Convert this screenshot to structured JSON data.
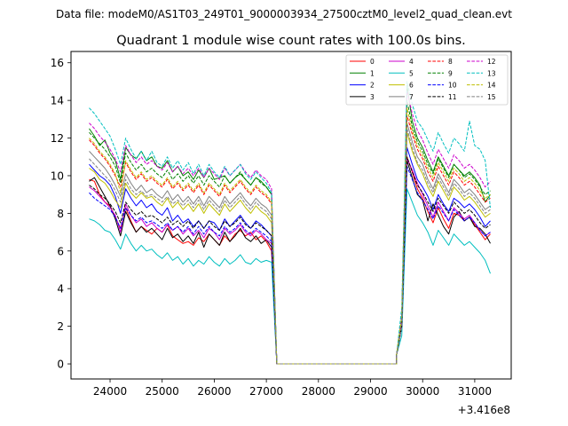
{
  "chart_data": {
    "type": "line",
    "suptitle": "Data file: modeM0/AS1T03_249T01_9000003934_27500cztM0_level2_quad_clean.evt",
    "title": "Quadrant 1 module wise count rates with 100.0s bins.",
    "xlabel": "",
    "ylabel": "",
    "x_offset_label": "+3.416e8",
    "xlim": [
      23250,
      31700
    ],
    "ylim": [
      -0.8,
      16.6
    ],
    "xticks": [
      24000,
      25000,
      26000,
      27000,
      28000,
      29000,
      30000,
      31000
    ],
    "xtick_labels": [
      "24000",
      "25000",
      "26000",
      "27000",
      "28000",
      "29000",
      "30000",
      "31000"
    ],
    "yticks": [
      0,
      2,
      4,
      6,
      8,
      10,
      12,
      14,
      16
    ],
    "ytick_labels": [
      "0",
      "2",
      "4",
      "6",
      "8",
      "10",
      "12",
      "14",
      "16"
    ],
    "segments": {
      "seg1": {
        "x_start": 23600,
        "x_end": 27100,
        "step": 100
      },
      "drop_x": [
        27100,
        27200
      ],
      "gap": {
        "x_start": 27200,
        "x_end": 29500
      },
      "seg2": {
        "x_start": 29500,
        "x_end": 31300,
        "step": 100
      }
    },
    "series": [
      {
        "name": "0",
        "color": "#ff0000",
        "dashed": false,
        "seg1": [
          9.8,
          9.7,
          9.0,
          8.6,
          8.4,
          7.8,
          7.2,
          8.3,
          7.6,
          7.0,
          7.3,
          7.1,
          6.9,
          7.2,
          7.0,
          7.4,
          6.8,
          6.6,
          6.4,
          6.5,
          6.3,
          6.7,
          6.5,
          6.9,
          6.6,
          6.3,
          6.8,
          6.5,
          6.9,
          7.1,
          6.8,
          7.0,
          6.6,
          6.8,
          6.5,
          6.0
        ],
        "seg2": [
          0.5,
          2.0,
          11.0,
          10.2,
          9.3,
          8.8,
          8.1,
          7.5,
          8.3,
          7.7,
          7.2,
          8.0,
          7.9,
          7.6,
          7.8,
          7.4,
          7.0,
          6.6,
          6.9
        ]
      },
      {
        "name": "1",
        "color": "#008000",
        "dashed": false,
        "seg1": [
          12.5,
          12.1,
          11.6,
          11.9,
          11.2,
          10.8,
          9.8,
          11.5,
          11.1,
          10.9,
          11.3,
          10.8,
          11.0,
          10.5,
          10.4,
          10.8,
          10.2,
          10.5,
          10.0,
          10.2,
          9.8,
          10.3,
          9.9,
          10.4,
          9.8,
          9.9,
          10.0,
          9.6,
          9.9,
          10.1,
          9.8,
          9.5,
          9.9,
          9.7,
          9.4,
          9.0
        ],
        "seg2": [
          0.5,
          2.5,
          14.8,
          12.9,
          12.0,
          11.5,
          10.8,
          10.2,
          11.0,
          10.5,
          10.0,
          10.6,
          10.3,
          10.0,
          10.2,
          9.9,
          9.5,
          8.6,
          9.0
        ]
      },
      {
        "name": "2",
        "color": "#0000ff",
        "dashed": false,
        "seg1": [
          10.6,
          10.3,
          10.0,
          9.8,
          9.5,
          8.9,
          8.0,
          9.3,
          8.8,
          8.4,
          8.7,
          8.3,
          8.5,
          8.1,
          7.9,
          8.3,
          7.6,
          7.9,
          7.5,
          7.7,
          7.3,
          7.6,
          7.2,
          7.6,
          7.5,
          7.1,
          7.7,
          7.3,
          7.6,
          7.9,
          7.5,
          7.2,
          7.6,
          7.4,
          7.1,
          6.8
        ],
        "seg2": [
          0.5,
          2.0,
          11.5,
          10.6,
          9.8,
          9.4,
          8.9,
          8.2,
          9.0,
          8.5,
          8.1,
          8.8,
          8.6,
          8.3,
          8.5,
          8.2,
          7.8,
          7.3,
          7.6
        ]
      },
      {
        "name": "3",
        "color": "#000000",
        "dashed": false,
        "seg1": [
          9.7,
          9.9,
          9.4,
          8.9,
          8.4,
          7.7,
          6.8,
          8.1,
          7.5,
          7.0,
          7.3,
          7.0,
          7.2,
          6.9,
          6.6,
          7.2,
          6.7,
          6.9,
          6.5,
          6.8,
          6.4,
          7.0,
          6.2,
          6.9,
          6.6,
          6.3,
          7.0,
          6.5,
          6.8,
          7.2,
          6.7,
          6.5,
          6.8,
          6.4,
          6.6,
          6.2
        ],
        "seg2": [
          0.5,
          2.0,
          10.8,
          9.9,
          9.0,
          8.7,
          7.6,
          8.5,
          7.9,
          7.3,
          6.9,
          7.8,
          8.1,
          7.6,
          7.8,
          7.3,
          7.2,
          6.9,
          6.4
        ]
      },
      {
        "name": "4",
        "color": "#cc00cc",
        "dashed": false,
        "seg1": [
          9.4,
          9.2,
          8.9,
          8.6,
          8.3,
          7.9,
          7.0,
          8.5,
          7.9,
          7.5,
          7.7,
          7.3,
          7.5,
          7.2,
          7.0,
          7.4,
          7.1,
          7.3,
          6.9,
          7.2,
          6.8,
          7.1,
          6.7,
          7.2,
          7.0,
          6.6,
          7.2,
          6.9,
          7.1,
          7.4,
          7.0,
          6.8,
          7.1,
          6.9,
          6.6,
          6.4
        ],
        "seg2": [
          0.5,
          2.0,
          10.9,
          10.3,
          9.6,
          9.0,
          8.4,
          7.8,
          8.6,
          8.1,
          7.6,
          8.3,
          8.0,
          7.7,
          7.9,
          7.5,
          7.1,
          6.8,
          7.0
        ]
      },
      {
        "name": "5",
        "color": "#00bfbf",
        "dashed": false,
        "seg1": [
          7.7,
          7.6,
          7.4,
          7.1,
          7.0,
          6.6,
          6.1,
          6.9,
          6.4,
          6.0,
          6.3,
          6.0,
          6.1,
          5.8,
          5.6,
          5.9,
          5.5,
          5.7,
          5.3,
          5.6,
          5.2,
          5.5,
          5.3,
          5.7,
          5.4,
          5.2,
          5.6,
          5.3,
          5.5,
          5.8,
          5.4,
          5.3,
          5.6,
          5.4,
          5.5,
          5.4
        ],
        "seg2": [
          0.5,
          1.5,
          9.3,
          8.6,
          7.9,
          7.5,
          7.0,
          6.3,
          7.1,
          6.7,
          6.3,
          6.9,
          6.6,
          6.3,
          6.5,
          6.2,
          5.9,
          5.5,
          4.8
        ]
      },
      {
        "name": "6",
        "color": "#bfbf00",
        "dashed": false,
        "seg1": [
          10.4,
          10.2,
          9.8,
          9.6,
          9.2,
          8.7,
          8.3,
          9.6,
          9.1,
          8.8,
          9.1,
          8.8,
          8.9,
          8.6,
          8.4,
          8.8,
          8.3,
          8.6,
          8.2,
          8.5,
          8.1,
          8.5,
          8.0,
          8.5,
          8.2,
          7.9,
          8.5,
          8.1,
          8.4,
          8.7,
          8.3,
          8.0,
          8.4,
          8.1,
          7.9,
          7.5
        ],
        "seg2": [
          0.5,
          2.0,
          12.3,
          11.3,
          10.6,
          10.1,
          9.4,
          8.9,
          9.7,
          9.2,
          8.7,
          9.4,
          9.1,
          8.7,
          8.9,
          8.6,
          8.2,
          7.8,
          8.0
        ]
      },
      {
        "name": "7",
        "color": "#808080",
        "dashed": false,
        "seg1": [
          11.3,
          11.0,
          10.7,
          10.4,
          10.0,
          9.5,
          8.9,
          10.1,
          9.6,
          9.2,
          9.5,
          9.1,
          9.3,
          9.0,
          8.8,
          9.2,
          8.7,
          9.0,
          8.6,
          8.9,
          8.5,
          8.9,
          8.4,
          8.9,
          8.6,
          8.3,
          8.9,
          8.5,
          8.8,
          9.1,
          8.7,
          8.4,
          8.8,
          8.5,
          8.3,
          7.9
        ],
        "seg2": [
          0.5,
          2.0,
          12.8,
          11.8,
          11.0,
          10.6,
          9.8,
          9.3,
          10.1,
          9.6,
          9.1,
          9.8,
          9.5,
          9.1,
          9.3,
          9.0,
          8.6,
          8.2,
          8.4
        ]
      },
      {
        "name": "8",
        "color": "#ff0000",
        "dashed": true,
        "seg1": [
          11.9,
          11.6,
          11.2,
          10.9,
          10.5,
          10.0,
          9.4,
          10.7,
          10.2,
          9.8,
          10.1,
          9.7,
          9.9,
          9.6,
          9.4,
          9.8,
          9.3,
          9.6,
          9.2,
          9.5,
          9.1,
          9.5,
          9.0,
          9.5,
          9.2,
          8.9,
          9.5,
          9.1,
          9.4,
          9.7,
          9.3,
          9.0,
          9.4,
          9.1,
          8.9,
          8.5
        ],
        "seg2": [
          0.5,
          2.5,
          13.2,
          12.2,
          11.4,
          10.9,
          10.2,
          9.7,
          10.5,
          10.0,
          9.5,
          10.2,
          9.9,
          9.5,
          9.7,
          9.4,
          9.0,
          8.6,
          8.8
        ]
      },
      {
        "name": "9",
        "color": "#008000",
        "dashed": true,
        "seg1": [
          12.3,
          12.0,
          11.7,
          11.4,
          11.0,
          10.5,
          9.6,
          11.2,
          10.7,
          10.3,
          10.6,
          10.2,
          10.4,
          10.1,
          9.9,
          10.3,
          9.8,
          10.1,
          9.7,
          10.0,
          9.6,
          10.0,
          9.5,
          10.0,
          9.7,
          9.4,
          10.0,
          9.6,
          9.9,
          10.2,
          9.8,
          9.5,
          9.9,
          9.6,
          9.4,
          9.0
        ],
        "seg2": [
          0.5,
          2.5,
          14.0,
          12.6,
          11.8,
          11.3,
          10.6,
          10.1,
          10.9,
          10.4,
          9.9,
          10.6,
          10.3,
          9.9,
          10.1,
          9.8,
          9.4,
          9.0,
          9.2
        ]
      },
      {
        "name": "10",
        "color": "#0000ff",
        "dashed": true,
        "seg1": [
          9.1,
          8.8,
          8.6,
          8.4,
          8.2,
          7.8,
          7.2,
          8.3,
          7.9,
          7.6,
          7.8,
          7.5,
          7.6,
          7.4,
          7.2,
          7.5,
          7.1,
          7.3,
          7.0,
          7.3,
          6.9,
          7.3,
          6.9,
          7.3,
          7.0,
          6.8,
          7.3,
          7.0,
          7.2,
          7.5,
          7.1,
          6.9,
          7.2,
          7.0,
          6.8,
          6.5
        ],
        "seg2": [
          0.5,
          2.0,
          10.5,
          9.8,
          9.1,
          8.7,
          8.2,
          7.7,
          8.4,
          8.0,
          7.6,
          8.2,
          7.9,
          7.6,
          7.8,
          7.5,
          7.1,
          6.8,
          7.0
        ]
      },
      {
        "name": "11",
        "color": "#000000",
        "dashed": true,
        "seg1": [
          9.5,
          9.3,
          9.0,
          8.8,
          8.5,
          8.1,
          7.5,
          8.6,
          8.2,
          7.9,
          8.1,
          7.8,
          7.9,
          7.7,
          7.5,
          7.8,
          7.4,
          7.6,
          7.3,
          7.6,
          7.2,
          7.6,
          7.2,
          7.6,
          7.3,
          7.1,
          7.6,
          7.3,
          7.5,
          7.8,
          7.4,
          7.2,
          7.5,
          7.3,
          7.1,
          6.8
        ],
        "seg2": [
          0.5,
          2.0,
          11.0,
          10.2,
          9.5,
          9.1,
          8.6,
          8.1,
          8.8,
          8.4,
          8.0,
          8.6,
          8.3,
          8.0,
          8.2,
          7.9,
          7.5,
          7.2,
          7.4
        ]
      },
      {
        "name": "12",
        "color": "#cc00cc",
        "dashed": true,
        "seg1": [
          12.8,
          12.5,
          12.1,
          11.8,
          11.4,
          10.9,
          10.2,
          11.6,
          11.1,
          10.7,
          11.0,
          10.6,
          10.8,
          10.5,
          10.3,
          10.7,
          10.2,
          10.5,
          10.1,
          10.4,
          10.0,
          10.4,
          9.9,
          10.4,
          10.1,
          9.8,
          10.4,
          10.0,
          10.3,
          10.6,
          10.2,
          9.9,
          10.3,
          10.0,
          9.8,
          9.3
        ],
        "seg2": [
          0.5,
          2.5,
          14.5,
          13.3,
          12.4,
          11.9,
          11.2,
          10.6,
          11.4,
          10.9,
          10.4,
          11.1,
          10.8,
          10.4,
          10.6,
          10.3,
          9.9,
          9.4,
          9.7
        ]
      },
      {
        "name": "13",
        "color": "#00bfbf",
        "dashed": true,
        "seg1": [
          13.6,
          13.3,
          12.9,
          12.5,
          12.1,
          11.4,
          10.6,
          12.0,
          11.4,
          10.9,
          11.3,
          10.8,
          11.3,
          10.7,
          10.5,
          11.0,
          10.4,
          10.8,
          10.3,
          10.7,
          10.1,
          10.6,
          10.0,
          10.6,
          10.2,
          9.9,
          10.5,
          10.0,
          10.3,
          10.6,
          10.1,
          9.8,
          10.2,
          9.9,
          9.6,
          9.1
        ],
        "seg2": [
          0.5,
          3.0,
          15.0,
          13.8,
          12.9,
          12.5,
          11.9,
          11.3,
          12.3,
          11.7,
          11.2,
          12.0,
          11.7,
          11.3,
          12.9,
          11.6,
          11.4,
          10.8,
          8.3
        ]
      },
      {
        "name": "14",
        "color": "#bfbf00",
        "dashed": true,
        "seg1": [
          12.0,
          11.7,
          11.3,
          11.0,
          10.6,
          10.1,
          9.1,
          10.8,
          10.3,
          9.9,
          10.2,
          9.8,
          10.0,
          9.7,
          9.5,
          9.9,
          9.4,
          9.7,
          9.3,
          9.6,
          9.2,
          9.6,
          9.1,
          9.6,
          9.3,
          9.0,
          9.6,
          9.2,
          9.5,
          9.8,
          9.4,
          9.1,
          9.5,
          9.2,
          9.0,
          8.6
        ],
        "seg2": [
          0.5,
          2.5,
          13.6,
          12.4,
          11.6,
          11.1,
          10.4,
          9.9,
          10.7,
          10.2,
          9.7,
          10.4,
          10.1,
          9.7,
          9.9,
          9.6,
          9.2,
          8.8,
          9.0
        ]
      },
      {
        "name": "15",
        "color": "#808080",
        "dashed": true,
        "seg1": [
          10.9,
          10.6,
          10.3,
          10.0,
          9.7,
          9.2,
          8.6,
          9.8,
          9.3,
          9.0,
          9.2,
          8.9,
          9.0,
          8.8,
          8.6,
          8.9,
          8.5,
          8.7,
          8.4,
          8.7,
          8.3,
          8.7,
          8.2,
          8.7,
          8.4,
          8.1,
          8.7,
          8.3,
          8.6,
          8.9,
          8.5,
          8.2,
          8.6,
          8.3,
          8.1,
          7.7
        ],
        "seg2": [
          0.5,
          2.0,
          12.5,
          11.5,
          10.7,
          10.3,
          9.6,
          9.1,
          9.9,
          9.4,
          8.9,
          9.6,
          9.3,
          8.9,
          9.1,
          8.8,
          8.4,
          8.0,
          8.2
        ]
      }
    ]
  }
}
